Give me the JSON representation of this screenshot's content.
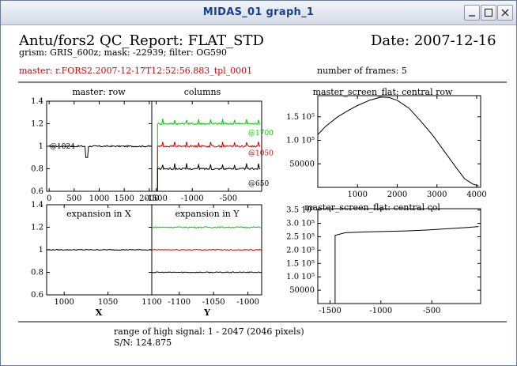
{
  "window": {
    "title": "MIDAS_01 graph_1"
  },
  "report": {
    "heading": "Antu/fors2 QC_Report: FLAT_STD",
    "date": "Date: 2007-12-16",
    "setup": "grism: GRIS_600z; mask: -22939; filter: OG590",
    "master": "master: r.FORS2.2007-12-17T12:52:56.883_tpl_0001",
    "nframes": "number of frames: 5",
    "range": "range of high signal: 1 - 2047 (2046 pixels)",
    "sn": "S/N: 124.875"
  },
  "colors": {
    "red": "#dd0000",
    "green": "#00cc00",
    "black": "#000000",
    "title_blue": "#1a3f8f"
  },
  "chart_data": [
    {
      "id": "master_row",
      "type": "line",
      "title": "master: row",
      "xlim": [
        -50,
        2050
      ],
      "ylim": [
        0.6,
        1.4
      ],
      "xticks": [
        0,
        500,
        1000,
        1500,
        2000
      ],
      "yticks": [
        0.6,
        0.8,
        1,
        1.2,
        1.4
      ],
      "xticklabels": [
        "0",
        "500",
        "1000",
        "1500",
        "2000"
      ],
      "yticklabels": [
        "0.6",
        "0.8",
        "1",
        "1.2",
        "1.4"
      ],
      "annotations": [
        "@1024"
      ],
      "series": [
        {
          "color": "#000000",
          "x": [
            0,
            2047
          ],
          "y": [
            1.0,
            1.0
          ],
          "noise": 0.006,
          "spike_at": 750,
          "spike_depth": 0.9
        }
      ]
    },
    {
      "id": "columns",
      "type": "line",
      "title": "columns",
      "xlim": [
        -1560,
        -40
      ],
      "ylim": [
        0.6,
        1.4
      ],
      "xticks": [
        -1500,
        -1000,
        -500
      ],
      "xticklabels": [
        "-1500",
        "-1000",
        "-500"
      ],
      "annotations": [
        "@1700",
        "@1050",
        "@650"
      ],
      "series": [
        {
          "color": "#00cc00",
          "x": [
            -1480,
            -60
          ],
          "y": [
            1.2,
            1.2
          ],
          "noise": 0.008
        },
        {
          "color": "#dd0000",
          "x": [
            -1480,
            -60
          ],
          "y": [
            1.0,
            1.0
          ],
          "noise": 0.008
        },
        {
          "color": "#000000",
          "x": [
            -1480,
            -60
          ],
          "y": [
            0.8,
            0.8
          ],
          "noise": 0.008
        }
      ]
    },
    {
      "id": "exp_x",
      "type": "line",
      "title": "expansion in X",
      "xlabel": "X",
      "xlim": [
        980,
        1100
      ],
      "ylim": [
        0.6,
        1.4
      ],
      "xticks": [
        1000,
        1050,
        1100
      ],
      "xticklabels": [
        "1000",
        "1050",
        "1100"
      ],
      "yticks": [
        0.6,
        0.8,
        1,
        1.2,
        1.4
      ],
      "yticklabels": [
        "0.6",
        "0.8",
        "1",
        "1.2",
        "1.4"
      ],
      "series": [
        {
          "color": "#000000",
          "x": [
            980,
            1100
          ],
          "y": [
            1.0,
            1.0
          ],
          "noise": 0.004
        }
      ]
    },
    {
      "id": "exp_y",
      "type": "line",
      "title": "expansion in Y",
      "xlabel": "Y",
      "xlim": [
        -1140,
        -980
      ],
      "ylim": [
        0.6,
        1.4
      ],
      "xticks": [
        -1100,
        -1050,
        -1000
      ],
      "xticklabels": [
        "-1100",
        "-1050",
        "-1000"
      ],
      "series": [
        {
          "color": "#00cc00",
          "x": [
            -1140,
            -980
          ],
          "y": [
            1.2,
            1.2
          ],
          "noise": 0.005
        },
        {
          "color": "#dd0000",
          "x": [
            -1140,
            -980
          ],
          "y": [
            1.0,
            1.0
          ],
          "noise": 0.004
        },
        {
          "color": "#000000",
          "x": [
            -1140,
            -980
          ],
          "y": [
            0.8,
            0.8
          ],
          "noise": 0.004
        }
      ]
    },
    {
      "id": "central_row",
      "type": "line",
      "title": "master_screen_flat: central row",
      "xlim": [
        0,
        4100
      ],
      "ylim": [
        0,
        195000
      ],
      "xticks": [
        1000,
        2000,
        3000,
        4000
      ],
      "xticklabels": [
        "1000",
        "2000",
        "3000",
        "4000"
      ],
      "yticks": [
        50000,
        100000,
        150000
      ],
      "yticklabels": [
        "50000",
        "1.0 10⁵",
        "1.5 10⁵"
      ],
      "series": [
        {
          "color": "#000000",
          "x": [
            0,
            200,
            500,
            800,
            1000,
            1300,
            1600,
            1800,
            2000,
            2300,
            2600,
            2900,
            3200,
            3500,
            3700,
            3900,
            4050
          ],
          "y": [
            112000,
            130000,
            150000,
            165000,
            174000,
            185000,
            192000,
            191000,
            185000,
            168000,
            140000,
            110000,
            75000,
            40000,
            18000,
            7000,
            3000
          ]
        }
      ]
    },
    {
      "id": "central_col",
      "type": "line",
      "title": "master_screen_flat: central col",
      "xlim": [
        -1620,
        -20
      ],
      "ylim": [
        0,
        355000
      ],
      "xticks": [
        -1500,
        -1000,
        -500
      ],
      "xticklabels": [
        "-1500",
        "-1000",
        "-500"
      ],
      "yticks": [
        50000,
        100000,
        150000,
        200000,
        250000,
        300000,
        350000
      ],
      "yticklabels": [
        "50000",
        "1.0 10⁵",
        "1.5 10⁵",
        "2.0 10⁵",
        "2.5 10⁵",
        "3.0 10⁵",
        "3.5 10⁵"
      ],
      "series": [
        {
          "color": "#000000",
          "x": [
            -1450,
            -1350,
            -1150,
            -950,
            -750,
            -550,
            -350,
            -150,
            -40
          ],
          "y": [
            255000,
            265000,
            268000,
            270000,
            272000,
            275000,
            280000,
            285000,
            288000
          ]
        }
      ]
    }
  ]
}
